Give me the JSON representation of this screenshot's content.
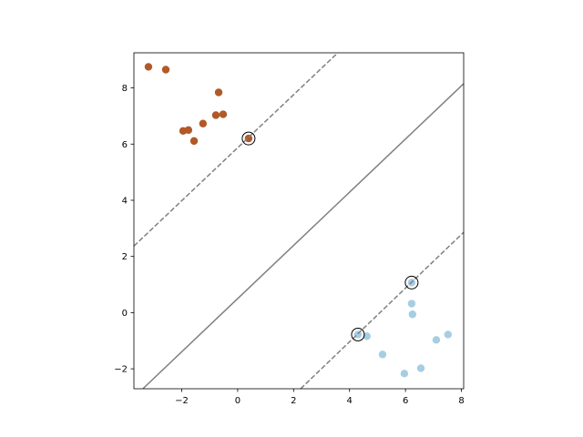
{
  "chart_data": {
    "type": "scatter",
    "xlim": [
      -3.71,
      8.08
    ],
    "ylim": [
      -2.71,
      9.25
    ],
    "xticks": [
      {
        "value": -2,
        "label": "−2"
      },
      0,
      2,
      4,
      6,
      8
    ],
    "yticks": [
      {
        "value": -2,
        "label": "−2"
      },
      0,
      2,
      4,
      6,
      8
    ],
    "series": [
      {
        "color": "#b15928",
        "x": [
          -3.19,
          -2.57,
          -1.95,
          -1.76,
          -1.56,
          -1.24,
          -0.68,
          -0.78,
          -0.52,
          0.39
        ],
        "values": [
          8.75,
          8.65,
          6.47,
          6.5,
          6.11,
          6.73,
          7.84,
          7.03,
          7.06,
          6.2
        ]
      },
      {
        "color": "#a6cee3",
        "x": [
          4.3,
          4.62,
          5.18,
          6.22,
          6.22,
          6.25,
          5.96,
          6.55,
          7.1,
          7.52
        ],
        "values": [
          -0.78,
          -0.84,
          -1.49,
          1.07,
          0.32,
          -0.06,
          -2.17,
          -1.98,
          -0.97,
          -0.78
        ]
      }
    ],
    "lines": [
      {
        "style": "dashed",
        "color": "#808080",
        "x": [
          -3.71,
          3.58
        ],
        "values": [
          2.37,
          9.25
        ]
      },
      {
        "style": "solid",
        "color": "#808080",
        "x": [
          -3.39,
          8.08
        ],
        "values": [
          -2.71,
          8.15
        ]
      },
      {
        "style": "dashed",
        "color": "#808080",
        "x": [
          2.25,
          8.08
        ],
        "values": [
          -2.71,
          2.86
        ]
      }
    ],
    "support_vectors": {
      "color": "#000000",
      "x": [
        0.39,
        4.3,
        6.22
      ],
      "values": [
        6.2,
        -0.78,
        1.07
      ]
    }
  }
}
